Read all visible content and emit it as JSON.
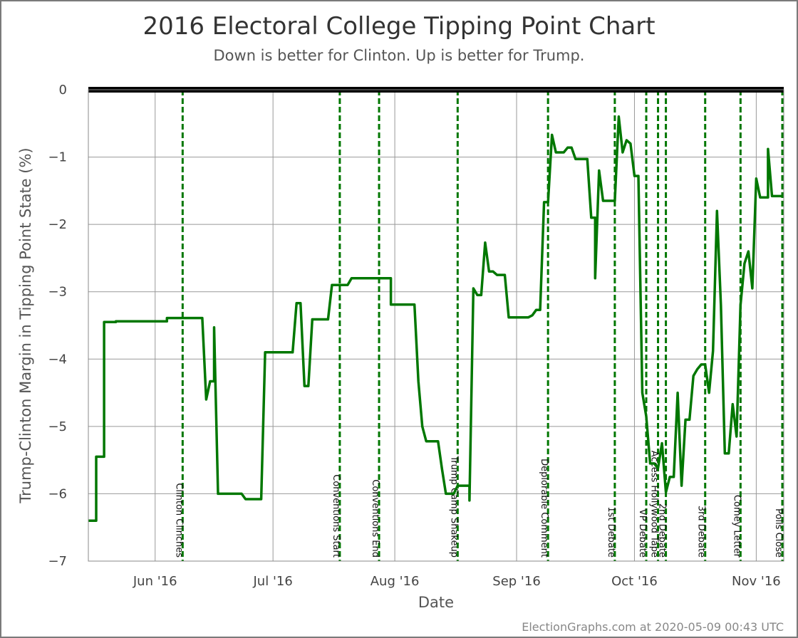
{
  "chart_data": {
    "type": "line",
    "title": "2016 Electoral College Tipping Point Chart",
    "subtitle": "Down is better for Clinton. Up is better for Trump.",
    "xlabel": "Date",
    "ylabel": "Trump-Clinton Margin in Tipping Point State (%)",
    "ylim": [
      -7,
      0
    ],
    "xlim": [
      "2016-05-15",
      "2016-11-08"
    ],
    "y_ticks": [
      "0",
      "−1",
      "−2",
      "−3",
      "−4",
      "−5",
      "−6",
      "−7"
    ],
    "x_ticks": [
      {
        "label": "Jun '16",
        "date": "2016-06-01"
      },
      {
        "label": "Jul '16",
        "date": "2016-07-01"
      },
      {
        "label": "Aug '16",
        "date": "2016-08-01"
      },
      {
        "label": "Sep '16",
        "date": "2016-09-01"
      },
      {
        "label": "Oct '16",
        "date": "2016-10-01"
      },
      {
        "label": "Nov '16",
        "date": "2016-11-01"
      }
    ],
    "shaded_band": {
      "from": -7,
      "to": -5,
      "color": "#ccccff"
    },
    "grid": true,
    "line_color": "#007700",
    "event_color": "#007700",
    "events": [
      {
        "label": "Clinton Clinches",
        "date": "2016-06-08"
      },
      {
        "label": "Conventions Start",
        "date": "2016-07-18"
      },
      {
        "label": "Conventions End",
        "date": "2016-07-28"
      },
      {
        "label": "Trump Camp Shakeup",
        "date": "2016-08-17"
      },
      {
        "label": "Deplorable Comment",
        "date": "2016-09-09"
      },
      {
        "label": "1st Debate",
        "date": "2016-09-26"
      },
      {
        "label": "VP Debate",
        "date": "2016-10-04"
      },
      {
        "label": "Access Hollywood Tape",
        "date": "2016-10-07"
      },
      {
        "label": "2nd Debate",
        "date": "2016-10-09"
      },
      {
        "label": "3rd Debate",
        "date": "2016-10-19"
      },
      {
        "label": "Comey Letter",
        "date": "2016-10-28"
      },
      {
        "label": "Polls Close",
        "date": "2016-11-08"
      }
    ],
    "series": [
      {
        "values": [
          {
            "x": "2016-05-15",
            "y": -6.4
          },
          {
            "x": "2016-05-17",
            "y": -6.4
          },
          {
            "x": "2016-05-17",
            "y": -5.45
          },
          {
            "x": "2016-05-19",
            "y": -5.45
          },
          {
            "x": "2016-05-19",
            "y": -3.45
          },
          {
            "x": "2016-05-22",
            "y": -3.45
          },
          {
            "x": "2016-05-22",
            "y": -3.44
          },
          {
            "x": "2016-06-04",
            "y": -3.44
          },
          {
            "x": "2016-06-04",
            "y": -3.39
          },
          {
            "x": "2016-06-13",
            "y": -3.39
          },
          {
            "x": "2016-06-14",
            "y": -4.6
          },
          {
            "x": "2016-06-15",
            "y": -4.33
          },
          {
            "x": "2016-06-16",
            "y": -4.33
          },
          {
            "x": "2016-06-16",
            "y": -3.53
          },
          {
            "x": "2016-06-17",
            "y": -6.0
          },
          {
            "x": "2016-06-23",
            "y": -6.0
          },
          {
            "x": "2016-06-24",
            "y": -6.08
          },
          {
            "x": "2016-06-28",
            "y": -6.08
          },
          {
            "x": "2016-06-29",
            "y": -3.9
          },
          {
            "x": "2016-07-06",
            "y": -3.9
          },
          {
            "x": "2016-07-07",
            "y": -3.17
          },
          {
            "x": "2016-07-08",
            "y": -3.17
          },
          {
            "x": "2016-07-09",
            "y": -4.4
          },
          {
            "x": "2016-07-10",
            "y": -4.4
          },
          {
            "x": "2016-07-11",
            "y": -3.41
          },
          {
            "x": "2016-07-15",
            "y": -3.41
          },
          {
            "x": "2016-07-16",
            "y": -2.9
          },
          {
            "x": "2016-07-20",
            "y": -2.9
          },
          {
            "x": "2016-07-21",
            "y": -2.8
          },
          {
            "x": "2016-07-31",
            "y": -2.8
          },
          {
            "x": "2016-07-31",
            "y": -3.19
          },
          {
            "x": "2016-08-06",
            "y": -3.19
          },
          {
            "x": "2016-08-07",
            "y": -4.33
          },
          {
            "x": "2016-08-08",
            "y": -5.0
          },
          {
            "x": "2016-08-09",
            "y": -5.22
          },
          {
            "x": "2016-08-12",
            "y": -5.22
          },
          {
            "x": "2016-08-13",
            "y": -5.63
          },
          {
            "x": "2016-08-14",
            "y": -6.0
          },
          {
            "x": "2016-08-16",
            "y": -6.0
          },
          {
            "x": "2016-08-17",
            "y": -5.88
          },
          {
            "x": "2016-08-20",
            "y": -5.88
          },
          {
            "x": "2016-08-20",
            "y": -6.1
          },
          {
            "x": "2016-08-21",
            "y": -2.95
          },
          {
            "x": "2016-08-22",
            "y": -3.05
          },
          {
            "x": "2016-08-23",
            "y": -3.05
          },
          {
            "x": "2016-08-24",
            "y": -2.27
          },
          {
            "x": "2016-08-25",
            "y": -2.7
          },
          {
            "x": "2016-08-26",
            "y": -2.7
          },
          {
            "x": "2016-08-27",
            "y": -2.75
          },
          {
            "x": "2016-08-29",
            "y": -2.75
          },
          {
            "x": "2016-08-30",
            "y": -3.38
          },
          {
            "x": "2016-09-04",
            "y": -3.38
          },
          {
            "x": "2016-09-05",
            "y": -3.35
          },
          {
            "x": "2016-09-06",
            "y": -3.27
          },
          {
            "x": "2016-09-07",
            "y": -3.27
          },
          {
            "x": "2016-09-08",
            "y": -1.67
          },
          {
            "x": "2016-09-09",
            "y": -1.67
          },
          {
            "x": "2016-09-10",
            "y": -0.67
          },
          {
            "x": "2016-09-11",
            "y": -0.93
          },
          {
            "x": "2016-09-13",
            "y": -0.93
          },
          {
            "x": "2016-09-14",
            "y": -0.86
          },
          {
            "x": "2016-09-15",
            "y": -0.86
          },
          {
            "x": "2016-09-16",
            "y": -1.03
          },
          {
            "x": "2016-09-19",
            "y": -1.03
          },
          {
            "x": "2016-09-20",
            "y": -1.9
          },
          {
            "x": "2016-09-21",
            "y": -1.9
          },
          {
            "x": "2016-09-21",
            "y": -2.8
          },
          {
            "x": "2016-09-22",
            "y": -1.2
          },
          {
            "x": "2016-09-23",
            "y": -1.65
          },
          {
            "x": "2016-09-26",
            "y": -1.65
          },
          {
            "x": "2016-09-27",
            "y": -0.4
          },
          {
            "x": "2016-09-28",
            "y": -0.93
          },
          {
            "x": "2016-09-29",
            "y": -0.75
          },
          {
            "x": "2016-09-30",
            "y": -0.8
          },
          {
            "x": "2016-10-01",
            "y": -1.28
          },
          {
            "x": "2016-10-02",
            "y": -1.28
          },
          {
            "x": "2016-10-03",
            "y": -4.5
          },
          {
            "x": "2016-10-04",
            "y": -4.85
          },
          {
            "x": "2016-10-05",
            "y": -5.55
          },
          {
            "x": "2016-10-06",
            "y": -5.55
          },
          {
            "x": "2016-10-07",
            "y": -5.62
          },
          {
            "x": "2016-10-08",
            "y": -5.25
          },
          {
            "x": "2016-10-09",
            "y": -5.98
          },
          {
            "x": "2016-10-10",
            "y": -5.75
          },
          {
            "x": "2016-10-11",
            "y": -5.75
          },
          {
            "x": "2016-10-12",
            "y": -4.5
          },
          {
            "x": "2016-10-13",
            "y": -5.88
          },
          {
            "x": "2016-10-14",
            "y": -4.9
          },
          {
            "x": "2016-10-15",
            "y": -4.9
          },
          {
            "x": "2016-10-16",
            "y": -4.25
          },
          {
            "x": "2016-10-17",
            "y": -4.15
          },
          {
            "x": "2016-10-18",
            "y": -4.08
          },
          {
            "x": "2016-10-19",
            "y": -4.08
          },
          {
            "x": "2016-10-20",
            "y": -4.5
          },
          {
            "x": "2016-10-21",
            "y": -3.88
          },
          {
            "x": "2016-10-22",
            "y": -1.8
          },
          {
            "x": "2016-10-23",
            "y": -3.2
          },
          {
            "x": "2016-10-24",
            "y": -5.4
          },
          {
            "x": "2016-10-25",
            "y": -5.4
          },
          {
            "x": "2016-10-26",
            "y": -4.67
          },
          {
            "x": "2016-10-27",
            "y": -5.15
          },
          {
            "x": "2016-10-28",
            "y": -3.2
          },
          {
            "x": "2016-10-29",
            "y": -2.58
          },
          {
            "x": "2016-10-30",
            "y": -2.4
          },
          {
            "x": "2016-10-31",
            "y": -2.95
          },
          {
            "x": "2016-11-01",
            "y": -1.32
          },
          {
            "x": "2016-11-02",
            "y": -1.6
          },
          {
            "x": "2016-11-04",
            "y": -1.6
          },
          {
            "x": "2016-11-04",
            "y": -0.88
          },
          {
            "x": "2016-11-05",
            "y": -1.58
          },
          {
            "x": "2016-11-08",
            "y": -1.58
          }
        ]
      }
    ]
  },
  "footer": "ElectionGraphs.com at 2020-05-09 00:43 UTC"
}
